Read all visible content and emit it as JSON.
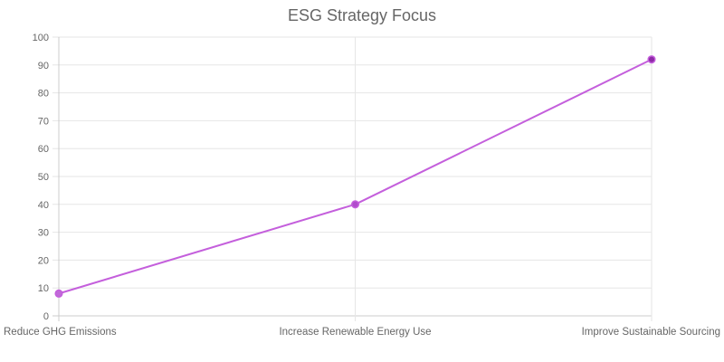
{
  "chart_data": {
    "type": "line",
    "title": "ESG Strategy Focus",
    "categories": [
      "Reduce GHG Emissions",
      "Increase Renewable Energy Use",
      "Improve Sustainable Sourcing"
    ],
    "series": [
      {
        "values": [
          8,
          40,
          92
        ],
        "color": "#c45fdc"
      }
    ],
    "ylim": [
      0,
      100
    ],
    "yticks": [
      "0",
      "10",
      "20",
      "30",
      "40",
      "50",
      "60",
      "70",
      "80",
      "90",
      "100"
    ],
    "grid": true,
    "legend": "none",
    "colors": {
      "line": "#c45fdc",
      "point_fill": "#a63fc4",
      "point_stroke": "#c45fdc",
      "grid": "#e6e6e6",
      "axis": "#cccccc",
      "text": "#666666"
    }
  }
}
